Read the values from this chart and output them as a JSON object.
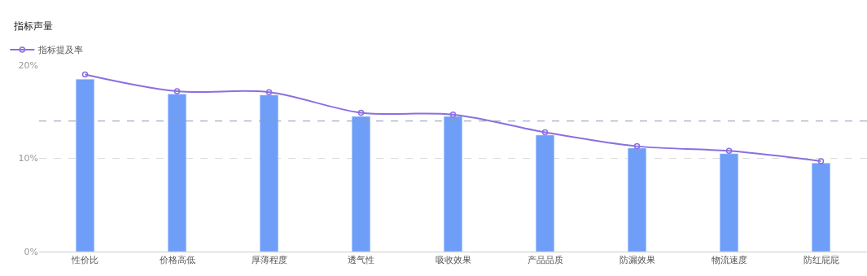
{
  "chart_data": {
    "type": "bar",
    "title": "指标声量",
    "categories": [
      "性价比",
      "价格高低",
      "厚薄程度",
      "透气性",
      "吸收效果",
      "产品品质",
      "防漏效果",
      "物流速度",
      "防红屁屁"
    ],
    "series": [
      {
        "color": "#6f9ef8",
        "values": [
          18.5,
          16.9,
          16.8,
          14.5,
          14.5,
          12.5,
          11.1,
          10.5,
          9.5
        ]
      },
      {
        "type": "line",
        "name": "指标提及率",
        "color": "#8b6fe0",
        "marker": "circle",
        "values": [
          19.0,
          17.2,
          17.1,
          14.9,
          14.7,
          12.8,
          11.3,
          10.8,
          9.7
        ]
      }
    ],
    "ylim": [
      0,
      20
    ],
    "yticks": [
      {
        "value": 0,
        "label": "0%"
      },
      {
        "value": 10,
        "label": "10%"
      },
      {
        "value": 20,
        "label": "20%"
      }
    ],
    "grid": "y",
    "legend": "top left",
    "ref_lines": [
      {
        "axis": "y",
        "value": 14.0,
        "label": null,
        "color": "#8a9bb5",
        "line_style": "dashed"
      }
    ]
  }
}
